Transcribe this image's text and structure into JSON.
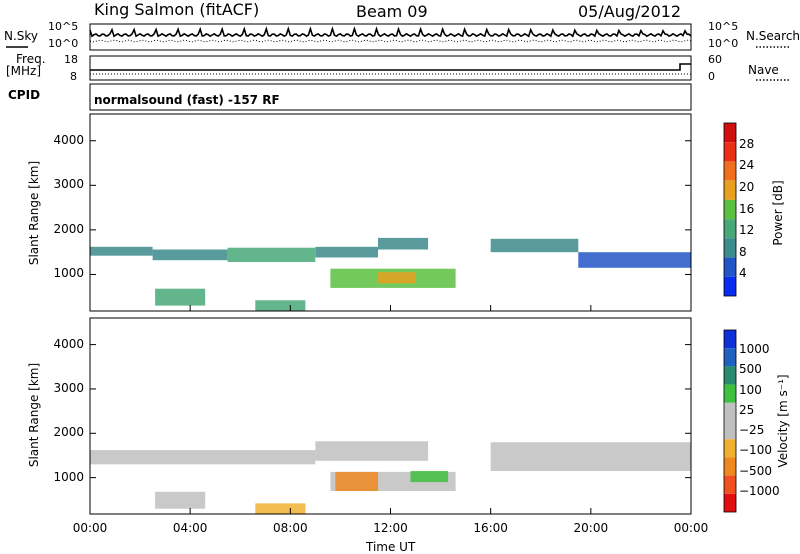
{
  "header": {
    "station": "King Salmon (fitACF)",
    "beam": "Beam 09",
    "date": "05/Aug/2012"
  },
  "noise_panel": {
    "left_label": "N.Sky",
    "right_label": "N.Search",
    "left_ticks": [
      "10^5",
      "10^0"
    ],
    "right_ticks": [
      "10^5",
      "10^0"
    ]
  },
  "freq_panel": {
    "left_label_line1": "Freq.",
    "left_label_line2": "[MHz]",
    "right_label": "Nave",
    "left_ticks": [
      "18",
      "8"
    ],
    "right_ticks": [
      "60",
      "0"
    ]
  },
  "cpid": {
    "label": "CPID",
    "mode": "normalsound (fast) -157 RF"
  },
  "x_axis": {
    "label": "Time UT",
    "ticks": [
      "00:00",
      "04:00",
      "08:00",
      "12:00",
      "16:00",
      "20:00",
      "00:00"
    ]
  },
  "colors": {
    "power_scale": [
      "#0a2cf0",
      "#2155c8",
      "#3c8a8c",
      "#48a878",
      "#5cc040",
      "#e8a020",
      "#f07020",
      "#e83018",
      "#d01010"
    ],
    "velocity_scale": [
      "#e01010",
      "#f05020",
      "#f08820",
      "#f0b030",
      "#c0c0c0",
      "#c0c0c0",
      "#40c040",
      "#2a8a70",
      "#2060c0",
      "#1030d8"
    ]
  },
  "chart_data": [
    {
      "type": "heatmap",
      "name": "power",
      "ylabel": "Slant Range [km]",
      "colorbar_label": "Power [dB]",
      "colorbar_ticks": [
        "28",
        "24",
        "20",
        "16",
        "12",
        "8",
        "4"
      ],
      "xlim_hours": [
        0,
        24
      ],
      "ylim_km": [
        180,
        4600
      ],
      "y_ticks": [
        1000,
        2000,
        3000,
        4000
      ],
      "regions": [
        {
          "t0": 0.0,
          "t1": 2.5,
          "r0": 1420,
          "r1": 1620,
          "value": 8
        },
        {
          "t0": 2.5,
          "t1": 5.5,
          "r0": 1320,
          "r1": 1560,
          "value": 10
        },
        {
          "t0": 5.5,
          "t1": 9.0,
          "r0": 1280,
          "r1": 1600,
          "value": 14
        },
        {
          "t0": 9.0,
          "t1": 11.5,
          "r0": 1380,
          "r1": 1620,
          "value": 10
        },
        {
          "t0": 11.5,
          "t1": 13.5,
          "r0": 1560,
          "r1": 1820,
          "value": 8
        },
        {
          "t0": 9.6,
          "t1": 14.6,
          "r0": 700,
          "r1": 1130,
          "value": 16
        },
        {
          "t0": 11.5,
          "t1": 13.0,
          "r0": 800,
          "r1": 1050,
          "value": 22
        },
        {
          "t0": 2.6,
          "t1": 4.6,
          "r0": 300,
          "r1": 680,
          "value": 12
        },
        {
          "t0": 6.6,
          "t1": 8.6,
          "r0": 180,
          "r1": 420,
          "value": 14
        },
        {
          "t0": 16.0,
          "t1": 19.5,
          "r0": 1500,
          "r1": 1800,
          "value": 8
        },
        {
          "t0": 19.5,
          "t1": 24.0,
          "r0": 1150,
          "r1": 1500,
          "value": 6
        }
      ]
    },
    {
      "type": "heatmap",
      "name": "velocity",
      "ylabel": "Slant Range [km]",
      "colorbar_label": "Velocity [m s⁻¹]",
      "colorbar_ticks": [
        "1000",
        "500",
        "100",
        "25",
        "−25",
        "−100",
        "−500",
        "−1000"
      ],
      "xlim_hours": [
        0,
        24
      ],
      "ylim_km": [
        180,
        4600
      ],
      "y_ticks": [
        1000,
        2000,
        3000,
        4000
      ],
      "regions": [
        {
          "t0": 0.0,
          "t1": 9.0,
          "r0": 1300,
          "r1": 1620,
          "value": 0
        },
        {
          "t0": 9.0,
          "t1": 13.5,
          "r0": 1380,
          "r1": 1820,
          "value": 0
        },
        {
          "t0": 9.6,
          "t1": 14.6,
          "r0": 700,
          "r1": 1130,
          "value": 0
        },
        {
          "t0": 9.8,
          "t1": 11.5,
          "r0": 700,
          "r1": 1130,
          "value": -150
        },
        {
          "t0": 12.8,
          "t1": 14.3,
          "r0": 900,
          "r1": 1150,
          "value": 80
        },
        {
          "t0": 2.6,
          "t1": 4.6,
          "r0": 300,
          "r1": 680,
          "value": 0
        },
        {
          "t0": 6.6,
          "t1": 8.6,
          "r0": 180,
          "r1": 420,
          "value": -80
        },
        {
          "t0": 16.0,
          "t1": 24.0,
          "r0": 1150,
          "r1": 1800,
          "value": 0
        }
      ]
    }
  ]
}
